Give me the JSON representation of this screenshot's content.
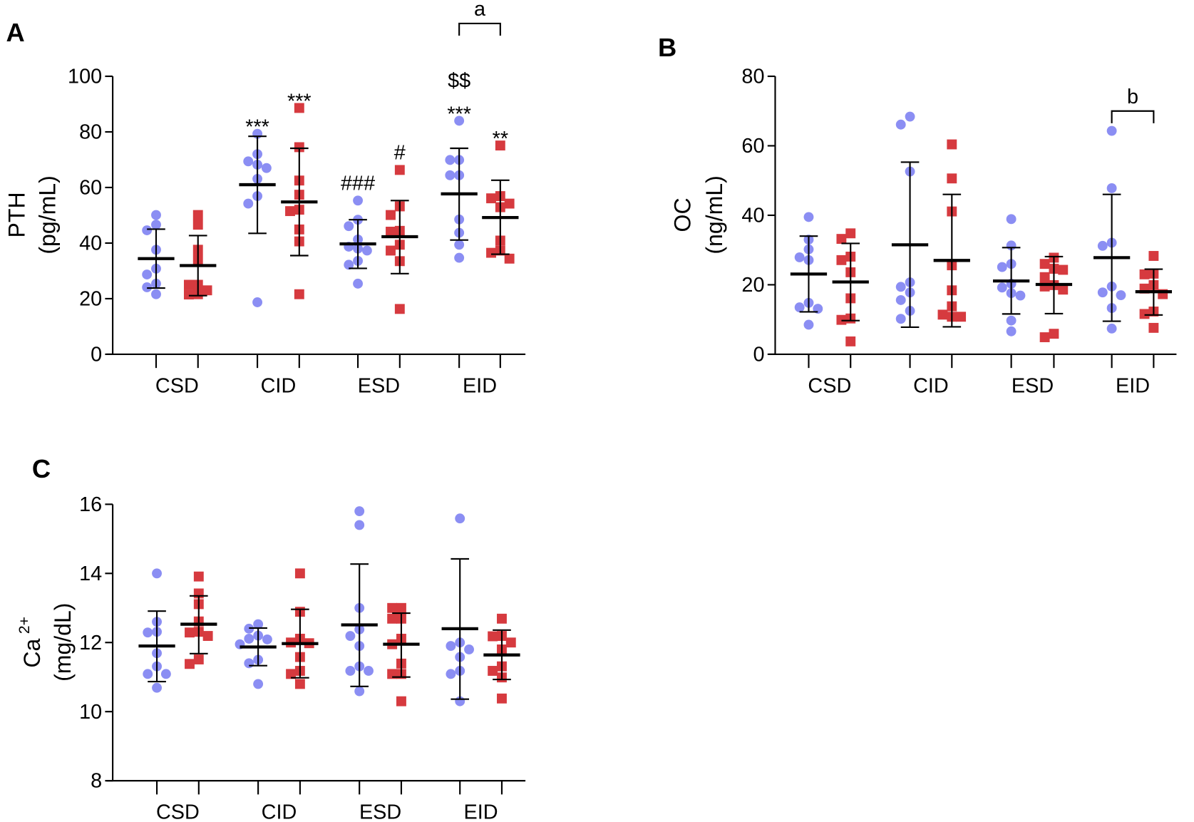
{
  "colors": {
    "circle": "#8b8ef3",
    "square": "#d63a3f",
    "axis": "#000000"
  },
  "chart_data": [
    {
      "type": "scatter",
      "panel": "A",
      "ylabel_lines": [
        "PTH",
        "(pg/mL)"
      ],
      "ylabel_sup": "",
      "ylim": [
        0,
        100
      ],
      "yticks": [
        0,
        20,
        40,
        60,
        80,
        100
      ],
      "categories": [
        "CSD",
        "CID",
        "ESD",
        "EID"
      ],
      "series": [
        {
          "marker": "circle",
          "groups": [
            {
              "points": [
                50.1,
                46.6,
                44.6,
                37.6,
                30.8,
                28.7,
                25.4,
                24.1,
                21.6
              ],
              "mean": 34.4,
              "sd": [
                23.8,
                45.0
              ]
            },
            {
              "points": [
                79.3,
                72.0,
                69.4,
                68.2,
                67.0,
                63.1,
                56.9,
                54.2,
                18.7
              ],
              "mean": 61.0,
              "sd": [
                43.5,
                78.4
              ]
            },
            {
              "points": [
                55.3,
                48.4,
                46.1,
                41.3,
                38.7,
                38.0,
                37.3,
                33.6,
                32.2,
                25.4
              ],
              "mean": 39.7,
              "sd": [
                30.9,
                48.4
              ]
            },
            {
              "points": [
                84.0,
                69.9,
                69.9,
                64.4,
                64.4,
                48.5,
                43.7,
                39.4,
                34.7
              ],
              "mean": 57.7,
              "sd": [
                41.1,
                74.1
              ]
            }
          ]
        },
        {
          "marker": "square",
          "groups": [
            {
              "points": [
                50.1,
                46.6,
                37.6,
                34.1,
                25.0,
                25.0,
                23.0,
                21.6,
                21.5
              ],
              "mean": 31.9,
              "sd": [
                21.1,
                42.7
              ]
            },
            {
              "points": [
                88.6,
                74.5,
                62.5,
                57.4,
                52.0,
                51.5,
                44.9,
                40.6,
                21.6
              ],
              "mean": 54.8,
              "sd": [
                35.5,
                74.1
              ]
            },
            {
              "points": [
                66.3,
                53.2,
                50.1,
                44.4,
                44.1,
                39.4,
                37.3,
                33.5,
                16.3
              ],
              "mean": 42.3,
              "sd": [
                29.0,
                55.3
              ]
            },
            {
              "points": [
                75.1,
                56.9,
                56.1,
                54.2,
                52.9,
                40.9,
                37.3,
                36.5,
                34.4
              ],
              "mean": 49.2,
              "sd": [
                36.0,
                62.6
              ]
            }
          ]
        }
      ],
      "annotations": [
        {
          "group": 1,
          "series": 0,
          "lines": [
            "***"
          ]
        },
        {
          "group": 1,
          "series": 1,
          "lines": [
            "***"
          ]
        },
        {
          "group": 2,
          "series": 0,
          "lines": [
            "###"
          ]
        },
        {
          "group": 2,
          "series": 1,
          "lines": [
            "#"
          ]
        },
        {
          "group": 3,
          "series": 0,
          "lines": [
            "$$",
            "***"
          ]
        },
        {
          "group": 3,
          "series": 1,
          "lines": [
            "**"
          ]
        }
      ],
      "brackets": [
        {
          "group": 3,
          "label": "a",
          "y": 119
        }
      ]
    },
    {
      "type": "scatter",
      "panel": "B",
      "ylabel_lines": [
        "OC",
        "(ng/mL)"
      ],
      "ylabel_sup": "",
      "ylim": [
        0,
        80
      ],
      "yticks": [
        0,
        20,
        40,
        60,
        80
      ],
      "categories": [
        "CSD",
        "CID",
        "ESD",
        "EID"
      ],
      "series": [
        {
          "marker": "circle",
          "groups": [
            {
              "points": [
                39.5,
                33.0,
                30.2,
                27.9,
                27.1,
                14.8,
                13.5,
                13.1,
                8.5
              ],
              "mean": 23.1,
              "sd": [
                12.2,
                34.0
              ]
            },
            {
              "points": [
                68.4,
                66.1,
                52.6,
                20.7,
                19.4,
                17.8,
                15.6,
                12.5,
                10.2
              ],
              "mean": 31.5,
              "sd": [
                7.8,
                55.3
              ]
            },
            {
              "points": [
                38.9,
                31.3,
                26.0,
                25.1,
                20.3,
                19.2,
                17.6,
                16.9,
                9.7,
                6.6
              ],
              "mean": 21.1,
              "sd": [
                11.6,
                30.7
              ]
            },
            {
              "points": [
                64.3,
                47.8,
                32.1,
                31.2,
                19.5,
                17.8,
                17.0,
                13.3,
                7.4
              ],
              "mean": 27.8,
              "sd": [
                9.5,
                46.0
              ]
            }
          ]
        },
        {
          "marker": "square",
          "groups": [
            {
              "points": [
                34.8,
                33.2,
                28.1,
                27.1,
                23.6,
                16.1,
                10.3,
                9.9,
                3.7
              ],
              "mean": 20.8,
              "sd": [
                9.7,
                31.9
              ]
            },
            {
              "points": [
                60.4,
                50.6,
                41.1,
                25.6,
                18.4,
                13.8,
                11.4,
                10.8,
                10.8
              ],
              "mean": 27.0,
              "sd": [
                7.9,
                46.0
              ]
            },
            {
              "points": [
                27.8,
                26.0,
                24.6,
                24.3,
                22.2,
                19.9,
                19.5,
                18.6,
                5.9,
                4.9
              ],
              "mean": 20.1,
              "sd": [
                11.7,
                28.1
              ]
            },
            {
              "points": [
                28.3,
                23.2,
                23.0,
                19.9,
                18.9,
                17.3,
                12.3,
                11.6,
                7.6
              ],
              "mean": 18.0,
              "sd": [
                11.3,
                24.5
              ]
            }
          ]
        }
      ],
      "annotations": [],
      "brackets": [
        {
          "group": 3,
          "label": "b",
          "y": 70
        }
      ]
    },
    {
      "type": "scatter",
      "panel": "C",
      "ylabel_lines": [
        "Ca",
        "(mg/dL)"
      ],
      "ylabel_sup": "2+",
      "ylim": [
        8,
        16
      ],
      "yticks": [
        8,
        10,
        12,
        14,
        16
      ],
      "categories": [
        "CSD",
        "CID",
        "ESD",
        "EID"
      ],
      "series": [
        {
          "marker": "circle",
          "groups": [
            {
              "points": [
                14.0,
                12.6,
                12.31,
                12.29,
                11.69,
                11.31,
                11.09,
                11.09,
                10.69
              ],
              "mean": 11.9,
              "sd": [
                10.87,
                12.91
              ]
            },
            {
              "points": [
                12.53,
                12.4,
                12.2,
                12.11,
                12.09,
                11.95,
                11.5,
                11.4,
                10.8
              ],
              "mean": 11.87,
              "sd": [
                11.33,
                12.42
              ]
            },
            {
              "points": [
                15.8,
                15.4,
                13.0,
                12.38,
                12.19,
                11.9,
                11.31,
                11.18,
                11.18,
                10.59
              ],
              "mean": 12.51,
              "sd": [
                10.73,
                14.27
              ]
            },
            {
              "points": [
                15.59,
                12.0,
                11.9,
                11.8,
                11.58,
                11.18,
                11.09,
                10.3
              ],
              "mean": 12.4,
              "sd": [
                10.36,
                14.42
              ]
            }
          ]
        },
        {
          "marker": "square",
          "groups": [
            {
              "points": [
                13.91,
                13.42,
                13.11,
                12.61,
                12.31,
                12.29,
                12.19,
                11.51,
                11.38
              ],
              "mean": 12.53,
              "sd": [
                11.68,
                13.35
              ]
            },
            {
              "points": [
                14.0,
                12.89,
                12.11,
                12.0,
                11.98,
                11.58,
                11.18,
                11.09,
                10.8
              ],
              "mean": 11.97,
              "sd": [
                10.98,
                12.96
              ]
            },
            {
              "points": [
                13.0,
                13.0,
                12.69,
                12.69,
                12.11,
                11.95,
                11.39,
                11.09,
                11.09,
                10.3
              ],
              "mean": 11.95,
              "sd": [
                11.0,
                12.85
              ]
            },
            {
              "points": [
                12.69,
                12.19,
                12.18,
                12.0,
                11.8,
                11.31,
                11.18,
                10.99,
                10.38
              ],
              "mean": 11.64,
              "sd": [
                10.93,
                12.36
              ]
            }
          ]
        }
      ],
      "annotations": [],
      "brackets": []
    }
  ]
}
